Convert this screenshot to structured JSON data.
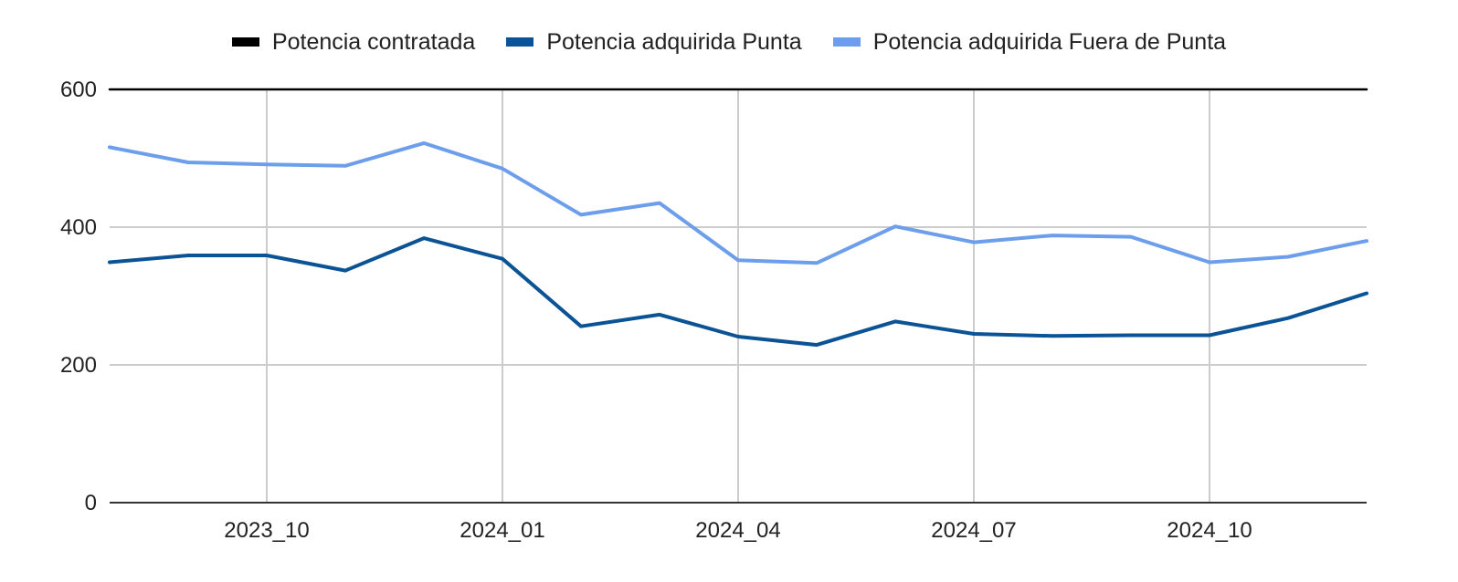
{
  "chart_data": {
    "type": "line",
    "title": "",
    "xlabel": "",
    "ylabel": "",
    "ylim": [
      0,
      600
    ],
    "yticks": [
      "0",
      "200",
      "400",
      "600"
    ],
    "xticks": [
      "2023_10",
      "2024_01",
      "2024_04",
      "2024_07",
      "2024_10"
    ],
    "categories": [
      "2023_08",
      "2023_09",
      "2023_10",
      "2023_11",
      "2023_12",
      "2024_01",
      "2024_02",
      "2024_03",
      "2024_04",
      "2024_05",
      "2024_06",
      "2024_07",
      "2024_08",
      "2024_09",
      "2024_10",
      "2024_11",
      "2024_12"
    ],
    "grid": true,
    "legend_position": "top",
    "series": [
      {
        "name": "Potencia contratada",
        "color": "#000000",
        "values": [
          600,
          600,
          600,
          600,
          600,
          600,
          600,
          600,
          600,
          600,
          600,
          600,
          600,
          600,
          600,
          600,
          600
        ]
      },
      {
        "name": "Potencia adquirida Punta",
        "color": "#0b5394",
        "values": [
          349,
          359,
          359,
          337,
          384,
          354,
          256,
          273,
          241,
          229,
          263,
          245,
          242,
          243,
          243,
          268,
          304
        ]
      },
      {
        "name": "Potencia adquirida Fuera de Punta",
        "color": "#6d9eeb",
        "values": [
          516,
          494,
          491,
          489,
          522,
          485,
          418,
          435,
          352,
          348,
          401,
          378,
          388,
          386,
          349,
          357,
          380
        ]
      }
    ]
  }
}
